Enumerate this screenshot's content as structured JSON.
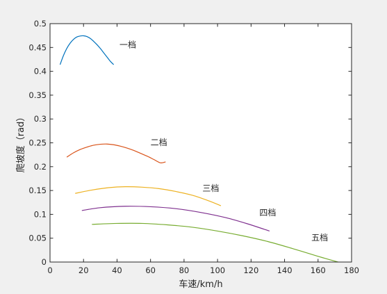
{
  "chart_data": {
    "type": "line",
    "title": "",
    "xlabel": "车速/km/h",
    "ylabel": "爬坡度（rad）",
    "xlim": [
      0,
      180
    ],
    "ylim": [
      0,
      0.5
    ],
    "xticks": [
      0,
      20,
      40,
      60,
      80,
      100,
      120,
      140,
      160,
      180
    ],
    "yticks": [
      0,
      0.05,
      0.1,
      0.15,
      0.2,
      0.25,
      0.3,
      0.35,
      0.4,
      0.45,
      0.5
    ],
    "xtick_labels": [
      "0",
      "20",
      "40",
      "60",
      "80",
      "100",
      "120",
      "140",
      "160",
      "180"
    ],
    "ytick_labels": [
      "0",
      "0.05",
      "0.1",
      "0.15",
      "0.2",
      "0.25",
      "0.3",
      "0.35",
      "0.4",
      "0.45",
      "0.5"
    ],
    "grid": false,
    "legend": "none",
    "series": [
      {
        "label": "一档",
        "color": "#0072BD",
        "label_at": [
          41.5,
          0.45
        ],
        "x": [
          6,
          8,
          10,
          12,
          14,
          16,
          18,
          20,
          22,
          24,
          26,
          28,
          30,
          32,
          34,
          36,
          38
        ],
        "y": [
          0.414,
          0.433,
          0.448,
          0.459,
          0.467,
          0.472,
          0.474,
          0.4745,
          0.473,
          0.469,
          0.463,
          0.456,
          0.448,
          0.439,
          0.43,
          0.421,
          0.414
        ]
      },
      {
        "label": "二档",
        "color": "#D95319",
        "label_at": [
          60,
          0.245
        ],
        "x": [
          10,
          14,
          18,
          22,
          26,
          30,
          34,
          38,
          42,
          46,
          50,
          54,
          58,
          62,
          66,
          69
        ],
        "y": [
          0.22,
          0.229,
          0.236,
          0.241,
          0.245,
          0.247,
          0.2475,
          0.246,
          0.243,
          0.239,
          0.234,
          0.228,
          0.222,
          0.215,
          0.208,
          0.21
        ]
      },
      {
        "label": "三档",
        "color": "#EDB120",
        "label_at": [
          91,
          0.149
        ],
        "x": [
          15,
          25,
          35,
          45,
          55,
          65,
          75,
          85,
          95,
          102
        ],
        "y": [
          0.144,
          0.151,
          0.156,
          0.158,
          0.157,
          0.154,
          0.148,
          0.14,
          0.128,
          0.118
        ]
      },
      {
        "label": "四档",
        "color": "#7E2F8E",
        "label_at": [
          125,
          0.098
        ],
        "x": [
          19,
          30,
          45,
          60,
          75,
          90,
          105,
          118,
          131
        ],
        "y": [
          0.108,
          0.114,
          0.117,
          0.116,
          0.112,
          0.104,
          0.093,
          0.08,
          0.065
        ]
      },
      {
        "label": "五档",
        "color": "#77AC30",
        "label_at": [
          156,
          0.045
        ],
        "x": [
          25,
          40,
          55,
          70,
          85,
          100,
          115,
          130,
          145,
          160,
          172
        ],
        "y": [
          0.079,
          0.081,
          0.081,
          0.078,
          0.073,
          0.065,
          0.055,
          0.043,
          0.028,
          0.012,
          0.0
        ]
      }
    ]
  }
}
